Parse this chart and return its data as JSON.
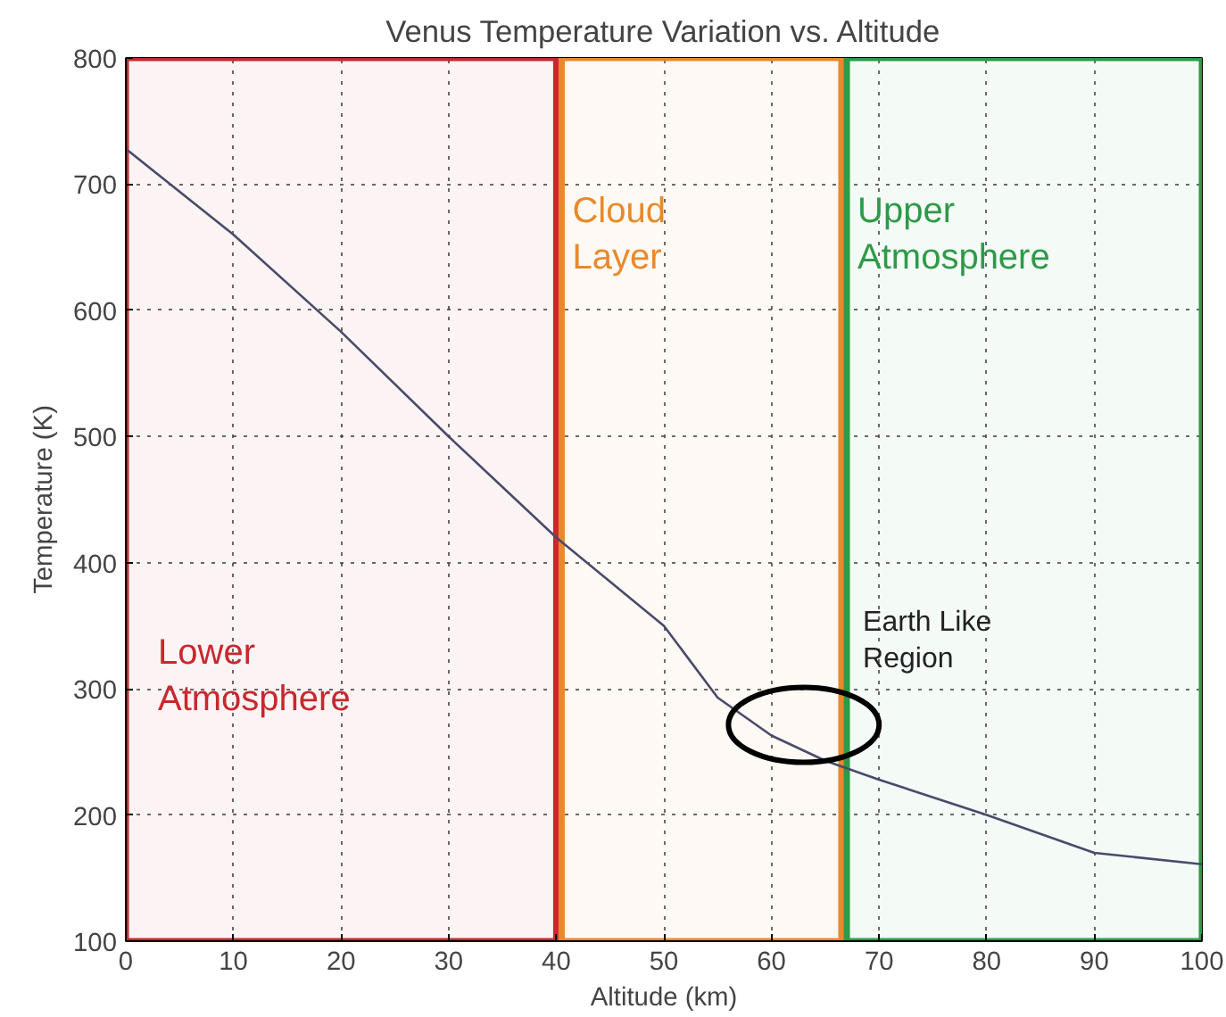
{
  "chart_data": {
    "type": "line",
    "title": "Venus Temperature Variation vs. Altitude",
    "xlabel": "Altitude (km)",
    "ylabel": "Temperature (K)",
    "x": [
      0,
      10,
      20,
      30,
      40,
      50,
      55,
      60,
      65,
      70,
      80,
      90,
      100
    ],
    "series": [
      {
        "color": "#4a4a6a",
        "values": [
          728,
          660,
          583,
          500,
          420,
          350,
          293,
          263,
          243,
          228,
          200,
          170,
          161
        ]
      }
    ],
    "xlim": [
      0,
      100
    ],
    "ylim": [
      100,
      800
    ],
    "xticks": [
      0,
      10,
      20,
      30,
      40,
      50,
      60,
      70,
      80,
      90,
      100
    ],
    "yticks": [
      100,
      200,
      300,
      400,
      500,
      600,
      700,
      800
    ],
    "grid": true,
    "marker": "none",
    "line_style": "solid",
    "bands": [
      {
        "axis": "x",
        "from": 0,
        "to": 40,
        "color": "#c8282d",
        "label": "Lower\nAtmosphere"
      },
      {
        "axis": "x",
        "from": 40.5,
        "to": 66.5,
        "color": "#e8892c",
        "label": "Cloud\nLayer"
      },
      {
        "axis": "x",
        "from": 67,
        "to": 100,
        "color": "#2e9a48",
        "label": "Upper\nAtmosphere"
      }
    ],
    "annotations": [
      "Earth Like\nRegion"
    ]
  }
}
